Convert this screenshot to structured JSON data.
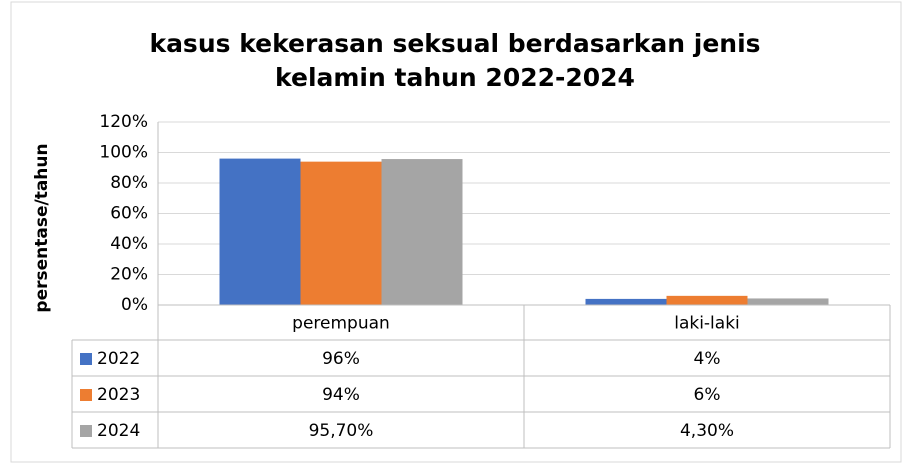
{
  "chart_data": {
    "type": "bar",
    "title": [
      "kasus kekerasan seksual berdasarkan jenis",
      "kelamin tahun 2022-2024"
    ],
    "y_label": "persentase/tahun",
    "categories": [
      "perempuan",
      "laki-laki"
    ],
    "series": [
      {
        "name": "2022",
        "color": "#4472c4",
        "values": [
          96,
          4
        ],
        "value_labels": [
          "96%",
          "4%"
        ]
      },
      {
        "name": "2023",
        "color": "#ed7d31",
        "values": [
          94,
          6
        ],
        "value_labels": [
          "94%",
          "6%"
        ]
      },
      {
        "name": "2024",
        "color": "#a5a5a5",
        "values": [
          95.7,
          4.3
        ],
        "value_labels": [
          "95,70%",
          "4,30%"
        ]
      }
    ],
    "ylim": [
      0,
      120
    ],
    "yticks": [
      {
        "value": 0,
        "label": "0%"
      },
      {
        "value": 20,
        "label": "20%"
      },
      {
        "value": 40,
        "label": "40%"
      },
      {
        "value": 60,
        "label": "60%"
      },
      {
        "value": 80,
        "label": "80%"
      },
      {
        "value": 100,
        "label": "100%"
      },
      {
        "value": 120,
        "label": "120%"
      }
    ],
    "grid": true,
    "data_table": true
  }
}
